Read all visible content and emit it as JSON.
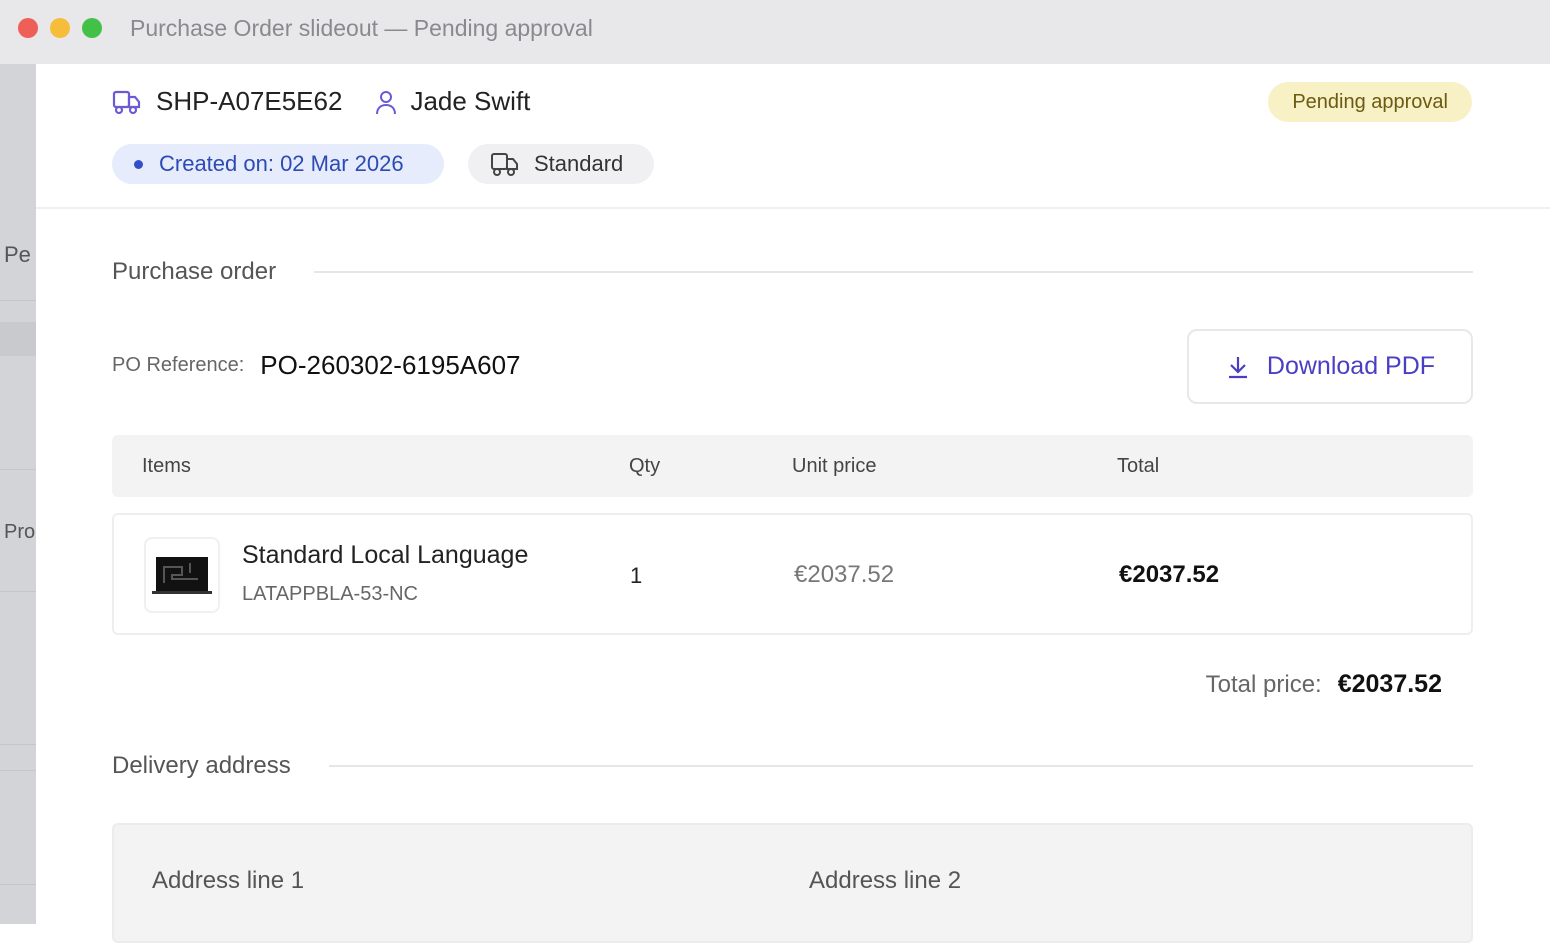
{
  "window": {
    "title": "Purchase Order slideout — Pending approval"
  },
  "sidebar": {
    "labels": [
      "Pe",
      "Pro"
    ]
  },
  "header": {
    "shipment_id": "SHP-A07E5E62",
    "user": "Jade Swift",
    "status": "Pending approval",
    "created": "Created on: 02 Mar 2026",
    "shipping_method": "Standard"
  },
  "purchase_order": {
    "section_title": "Purchase order",
    "po_ref_label": "PO Reference:",
    "po_ref": "PO-260302-6195A607",
    "download_label": "Download PDF",
    "columns": [
      "Items",
      "Qty",
      "Unit price",
      "Total"
    ],
    "items": [
      {
        "name": "Standard Local Language",
        "sku": "LATAPPBLA-53-NC",
        "qty": "1",
        "unit_price": "€2037.52",
        "total": "€2037.52"
      }
    ],
    "total_label": "Total price:",
    "total_value": "€2037.52"
  },
  "delivery": {
    "section_title": "Delivery address",
    "labels": [
      "Address line 1",
      "Address line 2"
    ]
  },
  "colors": {
    "accent": "#4a3fc4",
    "badge_bg": "#f8f1c6",
    "created_bg": "#e6ecfb"
  }
}
